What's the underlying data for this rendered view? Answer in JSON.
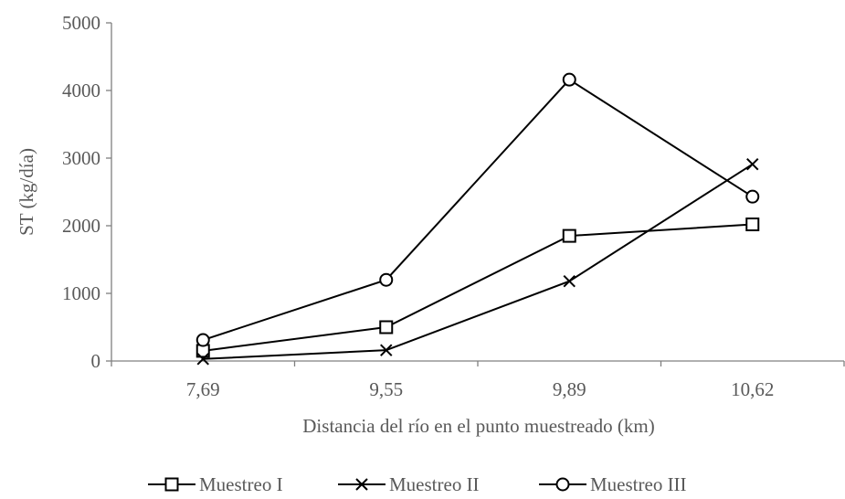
{
  "chart_data": {
    "type": "line",
    "title": "",
    "xlabel": "Distancia del río en el punto muestreado (km)",
    "ylabel": "ST (kg/día)",
    "categories": [
      "7,69",
      "9,55",
      "9,89",
      "10,62"
    ],
    "ylim": [
      0,
      5000
    ],
    "yticks": [
      "0",
      "1000",
      "2000",
      "3000",
      "4000",
      "5000"
    ],
    "grid": false,
    "legend_position": "bottom",
    "series": [
      {
        "name": "Muestreo I",
        "marker": "square",
        "values": [
          150,
          500,
          1850,
          2020
        ]
      },
      {
        "name": "Muestreo II",
        "marker": "x",
        "values": [
          30,
          160,
          1180,
          2910
        ]
      },
      {
        "name": "Muestreo III",
        "marker": "circle",
        "values": [
          310,
          1200,
          4160,
          2430
        ]
      }
    ],
    "colors": {
      "series": "#000000",
      "axis": "#808080",
      "text": "#595959"
    }
  }
}
